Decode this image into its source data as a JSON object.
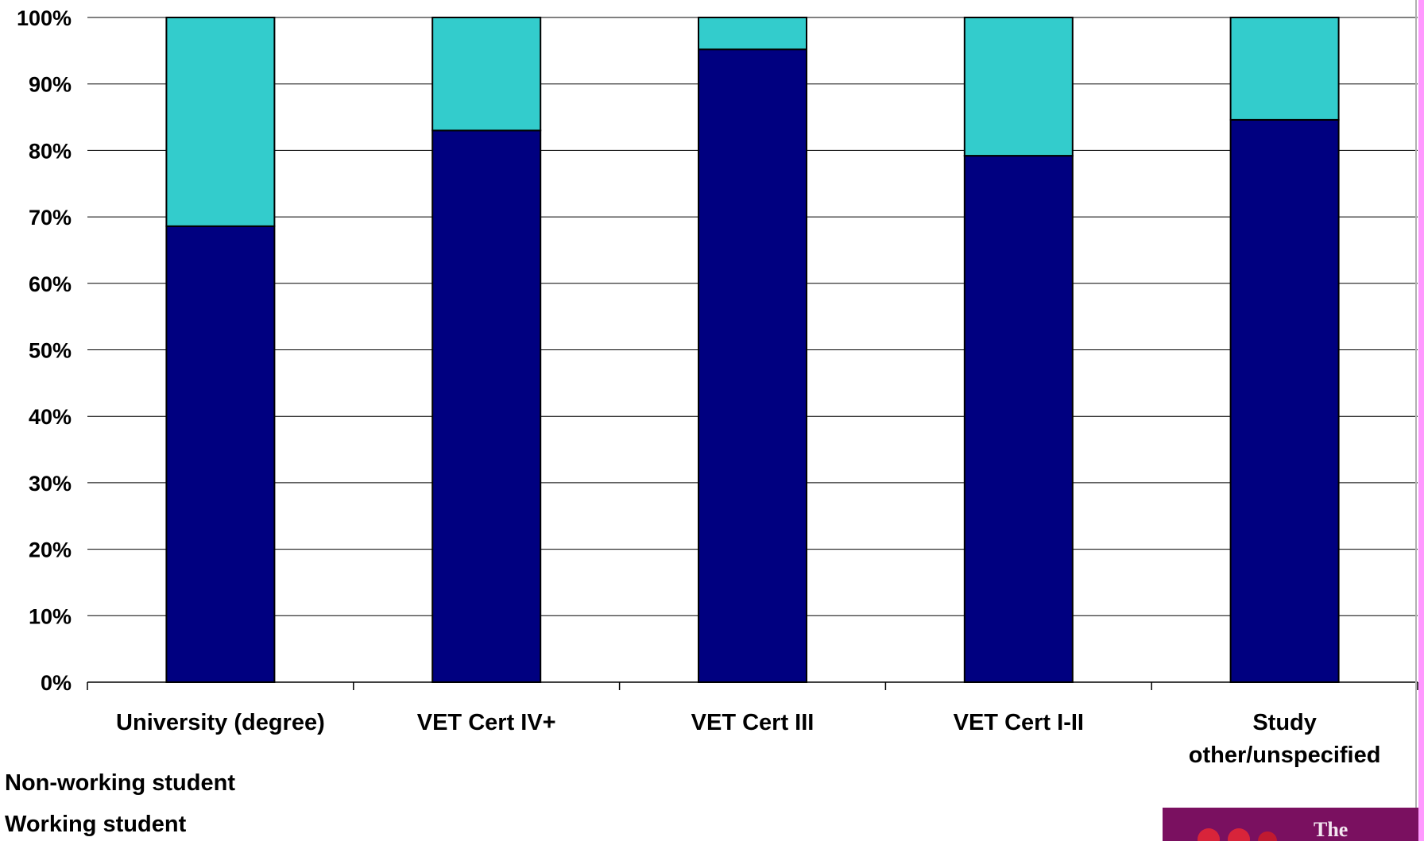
{
  "chart_data": {
    "type": "bar",
    "stacked": true,
    "percent_stacked": true,
    "categories": [
      "University (degree)",
      "VET Cert IV+",
      "VET Cert III",
      "VET Cert I-II",
      "Study other/unspecified"
    ],
    "series": [
      {
        "name": "Non-working student",
        "values": [
          68.6,
          83.0,
          95.2,
          79.2,
          84.6
        ],
        "color": "#000080"
      },
      {
        "name": "Working student",
        "values": [
          31.4,
          17.0,
          4.8,
          20.8,
          15.4
        ],
        "color": "#33CCCC"
      }
    ],
    "y_ticks": [
      "0%",
      "10%",
      "20%",
      "30%",
      "40%",
      "50%",
      "60%",
      "70%",
      "80%",
      "90%",
      "100%"
    ],
    "ylim": [
      0,
      100
    ],
    "grid": true,
    "legend_position": "bottom-left"
  },
  "decor": {
    "stripe_color": "#FF99FF",
    "logo_color": "#7A1060",
    "logo_text": "The"
  }
}
